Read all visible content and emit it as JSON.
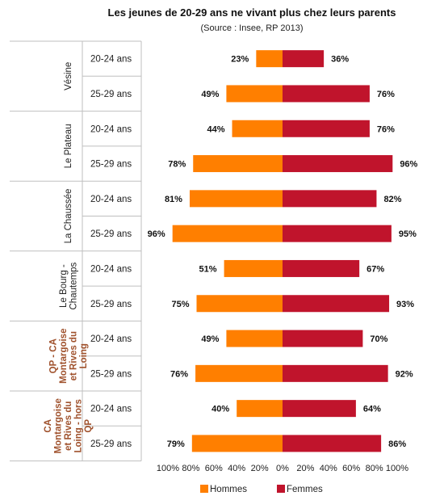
{
  "chart_data": {
    "type": "bar",
    "orientation": "horizontal-diverging",
    "title": "Les jeunes de 20-29 ans ne vivant plus chez leurs parents",
    "subtitle": "(Source : Insee, RP 2013)",
    "x_tick_labels": [
      "100%",
      "80%",
      "60%",
      "40%",
      "20%",
      "0%",
      "20%",
      "40%",
      "60%",
      "80%",
      "100%"
    ],
    "xlim": [
      -100,
      100
    ],
    "categories": [
      {
        "group": "Vésine",
        "age": "20-24 ans",
        "highlight": false
      },
      {
        "group": "Vésine",
        "age": "25-29 ans",
        "highlight": false
      },
      {
        "group": "Le Plateau",
        "age": "20-24 ans",
        "highlight": false
      },
      {
        "group": "Le Plateau",
        "age": "25-29 ans",
        "highlight": false
      },
      {
        "group": "La Chaussée",
        "age": "20-24 ans",
        "highlight": false
      },
      {
        "group": "La Chaussée",
        "age": "25-29 ans",
        "highlight": false
      },
      {
        "group": "Le Bourg - Chautemps",
        "age": "20-24 ans",
        "highlight": false
      },
      {
        "group": "Le Bourg - Chautemps",
        "age": "25-29 ans",
        "highlight": false
      },
      {
        "group": "QP - CA Montargoise et Rives du Loing",
        "age": "20-24 ans",
        "highlight": true
      },
      {
        "group": "QP - CA Montargoise et Rives du Loing",
        "age": "25-29 ans",
        "highlight": true
      },
      {
        "group": "CA Montargoise et Rives du Loing - hors QP",
        "age": "20-24 ans",
        "highlight": true
      },
      {
        "group": "CA Montargoise et Rives du Loing - hors QP",
        "age": "25-29 ans",
        "highlight": true
      }
    ],
    "groups": [
      {
        "lines": [
          "Vésine"
        ],
        "highlight": false
      },
      {
        "lines": [
          "Le Plateau"
        ],
        "highlight": false
      },
      {
        "lines": [
          "La Chaussée"
        ],
        "highlight": false
      },
      {
        "lines": [
          "Le Bourg -",
          "Chautemps"
        ],
        "highlight": false
      },
      {
        "lines": [
          "QP - CA",
          "Montargoise",
          "et Rives du",
          "Loing"
        ],
        "highlight": true
      },
      {
        "lines": [
          "CA",
          "Montargoise",
          "et Rives du",
          "Loing - hors",
          "QP"
        ],
        "highlight": true
      }
    ],
    "series": [
      {
        "name": "Hommes",
        "color": "#FF7F00",
        "side": "left",
        "values": [
          23,
          49,
          44,
          78,
          81,
          96,
          51,
          75,
          49,
          76,
          40,
          79
        ],
        "labels": [
          "23%",
          "49%",
          "44%",
          "78%",
          "81%",
          "96%",
          "51%",
          "75%",
          "49%",
          "76%",
          "40%",
          "79%"
        ]
      },
      {
        "name": "Femmes",
        "color": "#C0142C",
        "side": "right",
        "values": [
          36,
          76,
          76,
          96,
          82,
          95,
          67,
          93,
          70,
          92,
          64,
          86
        ],
        "labels": [
          "36%",
          "76%",
          "76%",
          "96%",
          "82%",
          "95%",
          "67%",
          "93%",
          "70%",
          "92%",
          "64%",
          "86%"
        ]
      }
    ],
    "colors": {
      "highlight_label": "#A0522D",
      "divider": "#BFBFBF"
    },
    "grid": false,
    "legend": "bottom"
  }
}
